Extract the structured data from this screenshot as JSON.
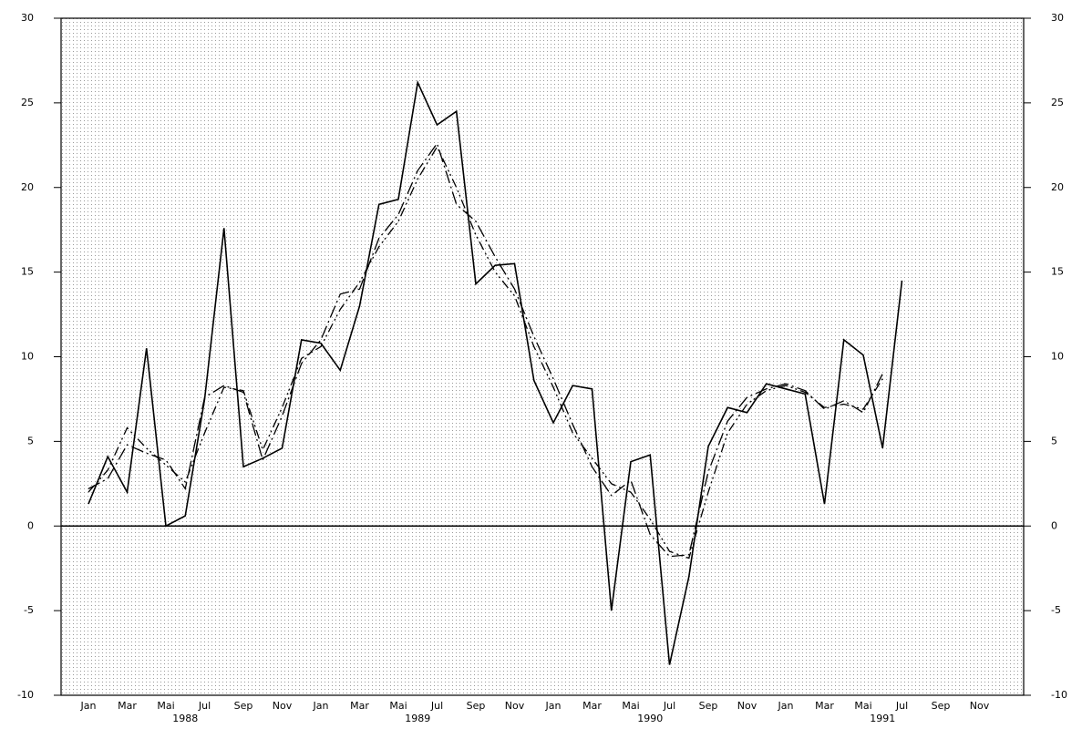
{
  "chart_data": {
    "type": "line",
    "categories": [
      "Jan",
      null,
      "Mar",
      null,
      "Mai",
      null,
      "Jul",
      null,
      "Sep",
      null,
      "Nov",
      null,
      "Jan",
      null,
      "Mar",
      null,
      "Mai",
      null,
      "Jul",
      null,
      "Sep",
      null,
      "Nov",
      null,
      "Jan",
      null,
      "Mar",
      null,
      "Mai",
      null,
      "Jul",
      null,
      "Sep",
      null,
      "Nov",
      null,
      "Jan",
      null,
      "Mar",
      null,
      "Mai",
      null,
      "Jul",
      null,
      "Sep",
      null,
      "Nov",
      null
    ],
    "year_labels": [
      "1988",
      "1989",
      "1990",
      "1991"
    ],
    "series": [
      {
        "color": "#000000",
        "dash": "solid",
        "values": [
          1.3,
          4.1,
          2.0,
          10.5,
          0.0,
          0.6,
          7.5,
          17.6,
          3.5,
          4.0,
          4.6,
          11.0,
          10.8,
          9.2,
          13.0,
          19.0,
          19.3,
          26.2,
          23.7,
          24.5,
          14.3,
          15.4,
          15.5,
          8.6,
          6.1,
          8.3,
          8.1,
          -5.0,
          3.8,
          4.2,
          -8.2,
          -3.0,
          4.7,
          7.0,
          6.7,
          8.4,
          8.1,
          7.8,
          1.3,
          11.0,
          10.1,
          4.6,
          14.5,
          null,
          null,
          null,
          null,
          null
        ]
      },
      {
        "color": "#000000",
        "dash": "dashdot",
        "values": [
          2.2,
          2.8,
          4.8,
          4.3,
          3.9,
          2.2,
          7.6,
          8.3,
          7.9,
          3.9,
          6.5,
          9.6,
          11.0,
          13.7,
          14.0,
          17.0,
          18.4,
          21.0,
          22.6,
          19.0,
          18.0,
          15.9,
          14.0,
          11.2,
          8.7,
          6.0,
          3.5,
          1.8,
          2.7,
          -0.5,
          -1.8,
          -1.7,
          3.2,
          6.2,
          7.6,
          8.1,
          8.4,
          8.0,
          6.9,
          7.4,
          6.7,
          9.0,
          null,
          null,
          null,
          null,
          null,
          null
        ]
      },
      {
        "color": "#000000",
        "dash": "dashdotdot",
        "values": [
          2.0,
          3.3,
          5.8,
          4.6,
          3.6,
          2.6,
          5.5,
          8.2,
          8.0,
          4.5,
          7.0,
          9.9,
          10.6,
          12.8,
          14.4,
          16.5,
          18.0,
          20.5,
          22.4,
          20.0,
          17.2,
          15.0,
          13.6,
          10.6,
          8.2,
          5.5,
          4.0,
          2.5,
          2.0,
          0.4,
          -1.5,
          -1.9,
          2.0,
          5.5,
          7.2,
          8.0,
          8.3,
          7.9,
          7.0,
          7.2,
          6.9,
          8.7,
          null,
          null,
          null,
          null,
          null,
          null
        ]
      }
    ],
    "ylim": [
      -10,
      30
    ],
    "yticks": [
      -10,
      -5,
      0,
      5,
      10,
      15,
      20,
      25,
      30
    ],
    "zero_line": true,
    "grid": "dotted"
  }
}
